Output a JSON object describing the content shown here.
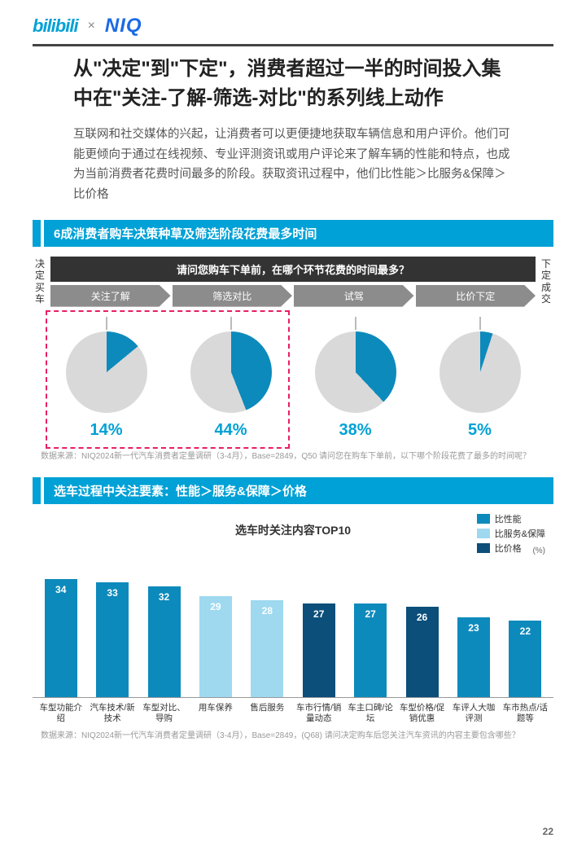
{
  "logos": {
    "bilibili": "bilibili",
    "sep": "×",
    "niq": "NIQ"
  },
  "title": "从\"决定\"到\"下定\"，消费者超过一半的时间投入集中在\"关注-了解-筛选-对比\"的系列线上动作",
  "body": "互联网和社交媒体的兴起，让消费者可以更便捷地获取车辆信息和用户评价。他们可能更倾向于通过在线视频、专业评测资讯或用户评论来了解车辆的性能和特点，也成为当前消费者花费时间最多的阶段。获取资讯过程中，他们比性能＞比服务&保障＞比价格",
  "section1": {
    "banner": "6成消费者购车决策种草及筛选阶段花费最多时间",
    "left_label": "决定买车",
    "right_label": "下定成交",
    "question": "请问您购车下单前，在哪个环节花费的时间最多？",
    "stages": [
      "关注了解",
      "筛选对比",
      "试驾",
      "比价下定"
    ],
    "pies": [
      {
        "pct": 14,
        "label": "14%",
        "color": "#0d8abc",
        "bg": "#d9d9d9",
        "highlighted": true
      },
      {
        "pct": 44,
        "label": "44%",
        "color": "#0d8abc",
        "bg": "#d9d9d9",
        "highlighted": true
      },
      {
        "pct": 38,
        "label": "38%",
        "color": "#0d8abc",
        "bg": "#d9d9d9",
        "highlighted": false
      },
      {
        "pct": 5,
        "label": "5%",
        "color": "#0d8abc",
        "bg": "#d9d9d9",
        "highlighted": false
      }
    ],
    "source": "数据来源：NIQ2024新一代汽车消费者定量调研（3-4月），Base=2849，Q50 请问您在购车下单前，以下哪个阶段花费了最多的时间呢？"
  },
  "section2": {
    "banner": "选车过程中关注要素：性能＞服务&保障＞价格",
    "chart_title": "选车时关注内容TOP10",
    "unit": "(%)",
    "legend": [
      {
        "label": "比性能",
        "color": "#0d8abc"
      },
      {
        "label": "比服务&保障",
        "color": "#9ed9f0"
      },
      {
        "label": "比价格",
        "color": "#0b4f7a"
      }
    ],
    "ymax": 40,
    "bars": [
      {
        "label": "车型功能介绍",
        "value": 34,
        "color": "#0d8abc"
      },
      {
        "label": "汽车技术/新技术",
        "value": 33,
        "color": "#0d8abc"
      },
      {
        "label": "车型对比、导购",
        "value": 32,
        "color": "#0d8abc"
      },
      {
        "label": "用车保养",
        "value": 29,
        "color": "#9ed9f0"
      },
      {
        "label": "售后服务",
        "value": 28,
        "color": "#9ed9f0"
      },
      {
        "label": "车市行情/销量动态",
        "value": 27,
        "color": "#0b4f7a"
      },
      {
        "label": "车主口碑/论坛",
        "value": 27,
        "color": "#0d8abc"
      },
      {
        "label": "车型价格/促销优惠",
        "value": 26,
        "color": "#0b4f7a"
      },
      {
        "label": "车评人大咖评测",
        "value": 23,
        "color": "#0d8abc"
      },
      {
        "label": "车市热点/话题等",
        "value": 22,
        "color": "#0d8abc"
      }
    ],
    "source": "数据来源：NIQ2024新一代汽车消费者定量调研（3-4月），Base=2849，(Q68) 请问决定购车后您关注汽车资讯的内容主要包含哪些？"
  },
  "page_number": "22"
}
